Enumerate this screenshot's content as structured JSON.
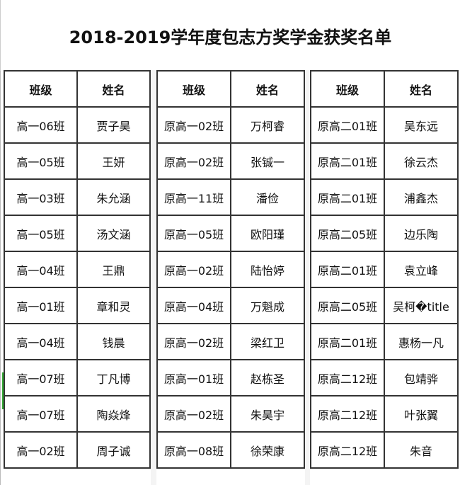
{
  "title": "2018-2019学年度包志方奖学金获奖名单",
  "headers": {
    "class": "班级",
    "name": "姓名"
  },
  "groups": [
    {
      "rows": [
        {
          "class": "高一06班",
          "name": "贾子昊"
        },
        {
          "class": "高一05班",
          "name": "王妍"
        },
        {
          "class": "高一03班",
          "name": "朱允涵"
        },
        {
          "class": "高一05班",
          "name": "汤文涵"
        },
        {
          "class": "高一04班",
          "name": "王鼎"
        },
        {
          "class": "高一01班",
          "name": "章和灵"
        },
        {
          "class": "高一04班",
          "name": "钱晨"
        },
        {
          "class": "高一07班",
          "name": "丁凡博"
        },
        {
          "class": "高一07班",
          "name": "陶焱烽"
        },
        {
          "class": "高一02班",
          "name": "周子诚"
        }
      ]
    },
    {
      "rows": [
        {
          "class": "原高一02班",
          "name": "万柯睿"
        },
        {
          "class": "原高一02班",
          "name": "张铖一"
        },
        {
          "class": "原高一11班",
          "name": "潘俭"
        },
        {
          "class": "原高一05班",
          "name": "欧阳瑾"
        },
        {
          "class": "原高一02班",
          "name": "陆怡婷"
        },
        {
          "class": "原高一04班",
          "name": "万魁成"
        },
        {
          "class": "原高一02班",
          "name": "梁红卫"
        },
        {
          "class": "原高一01班",
          "name": "赵栋圣"
        },
        {
          "class": "原高一02班",
          "name": "朱昊宇"
        },
        {
          "class": "原高一08班",
          "name": "徐荣康"
        }
      ]
    },
    {
      "rows": [
        {
          "class": "原高二01班",
          "name": "吴东远"
        },
        {
          "class": "原高二01班",
          "name": "徐云杰"
        },
        {
          "class": "原高二01班",
          "name": "浦鑫杰"
        },
        {
          "class": "原高二05班",
          "name": "边乐陶"
        },
        {
          "class": "原高二01班",
          "name": "袁立峰"
        },
        {
          "class": "原高二05班",
          "name": "吴柯�title"
        },
        {
          "class": "原高二01班",
          "name": "惠杨一凡"
        },
        {
          "class": "原高二12班",
          "name": "包靖骅"
        },
        {
          "class": "原高二12班",
          "name": "叶张翼"
        },
        {
          "class": "原高二12班",
          "name": "朱音"
        }
      ]
    }
  ]
}
